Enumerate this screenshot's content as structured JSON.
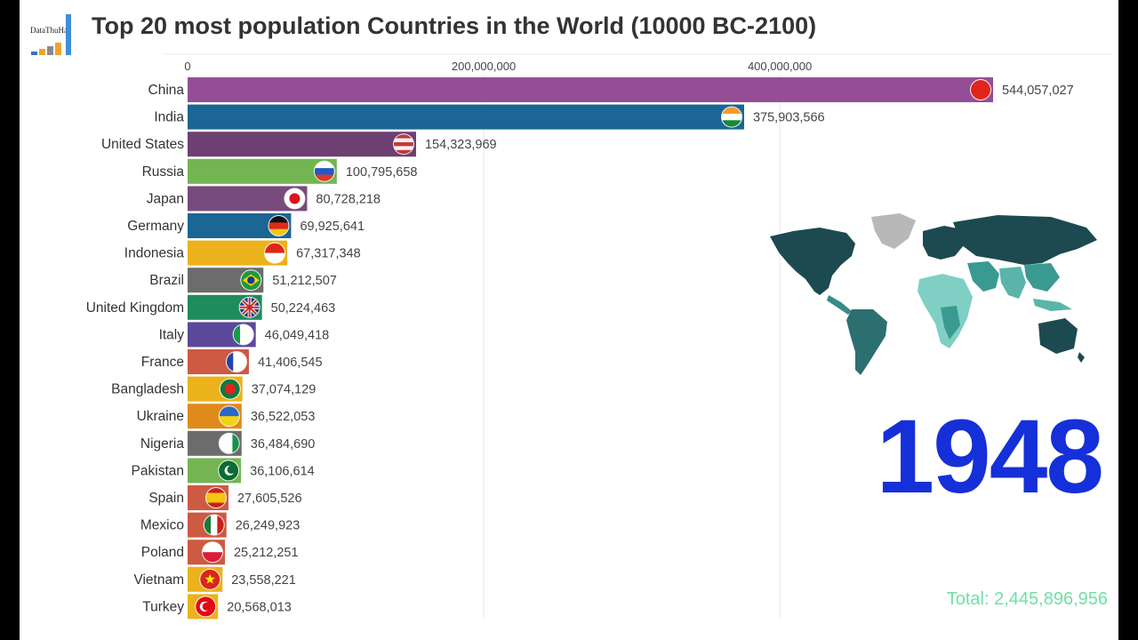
{
  "header": {
    "logo_text": "DataThuHa",
    "title": "Top 20 most population Countries in the World (10000 BC-2100)"
  },
  "colors": {
    "purple": "#944e96",
    "blue": "#1b6695",
    "dark_purple": "#6d3f73",
    "green": "#74b553",
    "japan_purple": "#774b7c",
    "orange": "#ecb21c",
    "gray": "#6c6c6c",
    "teal_green": "#1f8c5c",
    "violet": "#5c489a",
    "red": "#cd5a42",
    "year": "#1530d8",
    "total": "#6fe0a6"
  },
  "year_label": "1948",
  "total_label": "Total: 2,445,896,956",
  "chart_data": {
    "type": "bar",
    "orientation": "horizontal",
    "title": "Top 20 most population Countries in the World (10000 BC-2100)",
    "xlim": [
      0,
      544057027
    ],
    "xticks": [
      0,
      200000000,
      400000000
    ],
    "xtick_labels": [
      "0",
      "200,000,000",
      "400,000,000"
    ],
    "grid": true,
    "categories": [
      "China",
      "India",
      "United States",
      "Russia",
      "Japan",
      "Germany",
      "Indonesia",
      "Brazil",
      "United Kingdom",
      "Italy",
      "France",
      "Bangladesh",
      "Ukraine",
      "Nigeria",
      "Pakistan",
      "Spain",
      "Mexico",
      "Poland",
      "Vietnam",
      "Turkey"
    ],
    "values": [
      544057027,
      375903566,
      154323969,
      100795658,
      80728218,
      69925641,
      67317348,
      51212507,
      50224463,
      46049418,
      41406545,
      37074129,
      36522053,
      36484690,
      36106614,
      27605526,
      26249923,
      25212251,
      23558221,
      20568013
    ],
    "value_labels": [
      "544,057,027",
      "375,903,566",
      "154,323,969",
      "100,795,658",
      "80,728,218",
      "69,925,641",
      "67,317,348",
      "51,212,507",
      "50,224,463",
      "46,049,418",
      "41,406,545",
      "37,074,129",
      "36,522,053",
      "36,484,690",
      "36,106,614",
      "27,605,526",
      "26,249,923",
      "25,212,251",
      "23,558,221",
      "20,568,013"
    ],
    "bar_colors": [
      "#944e96",
      "#1b6695",
      "#6d3f73",
      "#74b553",
      "#774b7c",
      "#1b6695",
      "#ecb21c",
      "#6c6c6c",
      "#1f8c5c",
      "#5c489a",
      "#cd5a42",
      "#ecb21c",
      "#e08a1a",
      "#6c6c6c",
      "#74b553",
      "#cd5a42",
      "#cd5a42",
      "#cd5a42",
      "#ecb21c",
      "#ecb21c"
    ],
    "flag_icons": [
      "china-flag-icon",
      "india-flag-icon",
      "usa-flag-icon",
      "russia-flag-icon",
      "japan-flag-icon",
      "germany-flag-icon",
      "indonesia-flag-icon",
      "brazil-flag-icon",
      "uk-flag-icon",
      "italy-flag-icon",
      "france-flag-icon",
      "bangladesh-flag-icon",
      "ukraine-flag-icon",
      "nigeria-flag-icon",
      "pakistan-flag-icon",
      "spain-flag-icon",
      "mexico-flag-icon",
      "poland-flag-icon",
      "vietnam-flag-icon",
      "turkey-flag-icon"
    ]
  }
}
